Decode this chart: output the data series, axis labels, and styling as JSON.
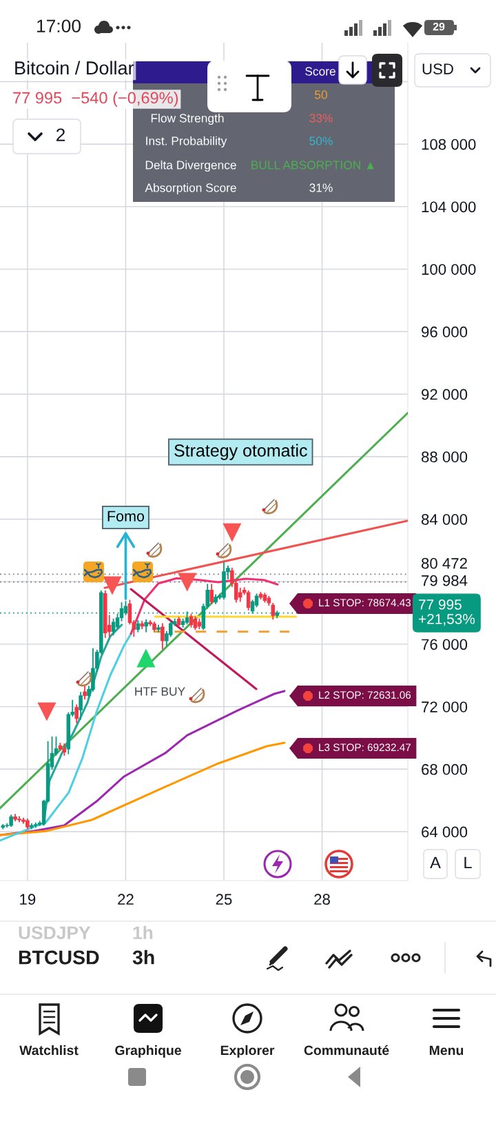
{
  "chart_data": {
    "type": "candlestick",
    "title": "Bitcoin / Dollar",
    "subtitle": "77 995  −540 (−0,69%)",
    "x": [
      18.25,
      18.375,
      18.5,
      18.625,
      18.75,
      18.875,
      19,
      19.125,
      19.25,
      19.375,
      19.5,
      19.625,
      19.75,
      19.875,
      20,
      20.125,
      20.25,
      20.375,
      20.5,
      20.625,
      20.75,
      20.875,
      21,
      21.125,
      21.25,
      21.375,
      21.5,
      21.625,
      21.75,
      21.875,
      22,
      22.125,
      22.25,
      22.375,
      22.5,
      22.625,
      22.75,
      22.875,
      23,
      23.125,
      23.25,
      23.375,
      23.5,
      23.625,
      23.75,
      23.875,
      24,
      24.125,
      24.25,
      24.375,
      24.5,
      24.625,
      24.75,
      24.875,
      25,
      25.125,
      25.25,
      25.375,
      25.5,
      25.625,
      25.75,
      25.875,
      26,
      26.125,
      26.25,
      26.375,
      26.5,
      26.625
    ],
    "ohlc": [
      [
        64280,
        64450,
        64200,
        64380
      ],
      [
        64380,
        64500,
        64300,
        64400
      ],
      [
        64400,
        65050,
        64350,
        64950
      ],
      [
        64950,
        65100,
        64700,
        64800
      ],
      [
        64800,
        64950,
        64650,
        64750
      ],
      [
        64750,
        64850,
        64550,
        64650
      ],
      [
        64700,
        64800,
        64200,
        64300
      ],
      [
        64300,
        64500,
        64200,
        64400
      ],
      [
        64400,
        64550,
        64300,
        64450
      ],
      [
        64450,
        64650,
        64400,
        64550
      ],
      [
        64500,
        66000,
        64450,
        65950
      ],
      [
        65950,
        69750,
        65900,
        68350
      ],
      [
        68150,
        70050,
        68000,
        69000
      ],
      [
        69000,
        70050,
        68900,
        69300
      ],
      [
        69500,
        69650,
        69250,
        69300
      ],
      [
        69300,
        69600,
        68900,
        69100
      ],
      [
        69300,
        71600,
        69000,
        71500
      ],
      [
        71500,
        72400,
        71400,
        71650
      ],
      [
        71950,
        72100,
        71000,
        71250
      ],
      [
        71800,
        72900,
        71200,
        72700
      ],
      [
        72950,
        73300,
        72500,
        72700
      ],
      [
        72700,
        73300,
        72600,
        73100
      ],
      [
        73100,
        75700,
        73000,
        74450
      ],
      [
        74450,
        75600,
        74300,
        75480
      ],
      [
        75480,
        79400,
        75400,
        79300
      ],
      [
        79230,
        79400,
        76440,
        76730
      ],
      [
        77200,
        77830,
        76500,
        76800
      ],
      [
        76800,
        77600,
        76600,
        77400
      ],
      [
        77100,
        77900,
        77000,
        77680
      ],
      [
        77700,
        78640,
        77500,
        78270
      ],
      [
        78000,
        78720,
        77900,
        78420
      ],
      [
        78570,
        78800,
        77300,
        77390
      ],
      [
        77390,
        77500,
        76510,
        76950
      ],
      [
        76950,
        77500,
        76800,
        77300
      ],
      [
        77300,
        77450,
        77000,
        77150
      ],
      [
        77150,
        77550,
        76800,
        77390
      ],
      [
        77390,
        77500,
        77200,
        77300
      ],
      [
        77300,
        77400,
        76850,
        76950
      ],
      [
        76950,
        77200,
        76800,
        77050
      ],
      [
        77100,
        77300,
        75700,
        76220
      ],
      [
        76220,
        76800,
        75920,
        76660
      ],
      [
        76600,
        77450,
        76500,
        77320
      ],
      [
        77300,
        77600,
        77200,
        77450
      ],
      [
        77600,
        77700,
        77150,
        77250
      ],
      [
        77250,
        77600,
        77100,
        77460
      ],
      [
        77400,
        78050,
        77300,
        77680
      ],
      [
        77760,
        77900,
        77100,
        77240
      ],
      [
        77600,
        77750,
        76950,
        77060
      ],
      [
        77400,
        77600,
        77000,
        77150
      ],
      [
        77020,
        78550,
        76950,
        78420
      ],
      [
        78420,
        79820,
        78300,
        79450
      ],
      [
        79450,
        79820,
        78600,
        78720
      ],
      [
        78700,
        79150,
        78600,
        79010
      ],
      [
        79000,
        79200,
        78900,
        79100
      ],
      [
        79000,
        81210,
        78900,
        80630
      ],
      [
        80630,
        80990,
        80190,
        80850
      ],
      [
        80700,
        80850,
        79700,
        79890
      ],
      [
        79890,
        80000,
        78700,
        78860
      ],
      [
        79300,
        79570,
        78750,
        79010
      ],
      [
        79450,
        79600,
        79200,
        79300
      ],
      [
        79300,
        79400,
        78200,
        78350
      ],
      [
        78130,
        78800,
        78000,
        78720
      ],
      [
        78500,
        79200,
        78400,
        79080
      ],
      [
        79200,
        79300,
        78900,
        79000
      ],
      [
        79150,
        79250,
        78700,
        78800
      ],
      [
        78950,
        79050,
        78500,
        78640
      ],
      [
        78500,
        78600,
        77610,
        77840
      ],
      [
        77840,
        78100,
        77700,
        77995
      ]
    ],
    "colors": [
      "#089981",
      "#089981",
      "#089981",
      "#f23645",
      "#f23645",
      "#f23645",
      "#f23645",
      "#089981",
      "#089981",
      "#089981",
      "#089981",
      "#089981",
      "#089981",
      "#089981",
      "#f23645",
      "#f23645",
      "#089981",
      "#089981",
      "#f23645",
      "#089981",
      "#f23645",
      "#089981",
      "#089981",
      "#089981",
      "#089981",
      "#f23645",
      "#f23645",
      "#089981",
      "#089981",
      "#089981",
      "#089981",
      "#f23645",
      "#f23645",
      "#089981",
      "#f23645",
      "#089981",
      "#f23645",
      "#f23645",
      "#089981",
      "#f23645",
      "#089981",
      "#089981",
      "#089981",
      "#f23645",
      "#089981",
      "#089981",
      "#f23645",
      "#f23645",
      "#f23645",
      "#089981",
      "#089981",
      "#f23645",
      "#089981",
      "#089981",
      "#089981",
      "#089981",
      "#f23645",
      "#f23645",
      "#f23645",
      "#f23645",
      "#f23645",
      "#089981",
      "#089981",
      "#f23645",
      "#f23645",
      "#f23645",
      "#f23645",
      "#089981"
    ],
    "series": [
      {
        "type": "line",
        "x": [
          18.16,
          30.62
        ],
        "values": [
          65500,
          90800
        ],
        "color": "#4caf50"
      },
      {
        "type": "line",
        "x": [
          21.36,
          30.62
        ],
        "values": [
          79600,
          83900
        ],
        "color": "#ef5350"
      },
      {
        "type": "line",
        "x": [
          18.16,
          19.21,
          20.12,
          21.11,
          21.95,
          23.21,
          23.88,
          25.42,
          26.54,
          26.85
        ],
        "values": [
          63780,
          64040,
          64400,
          65940,
          67530,
          69030,
          70170,
          71760,
          72820,
          73000
        ],
        "color": "#9c27b0"
      },
      {
        "type": "line",
        "x": [
          18.16,
          19.57,
          20.96,
          23.21,
          24.77,
          26.31,
          26.85
        ],
        "values": [
          63780,
          64040,
          64750,
          66870,
          68320,
          69470,
          69690
        ],
        "color": "#ff9800"
      },
      {
        "type": "line",
        "x": [
          18.16,
          19.57,
          20.26,
          20.68,
          21.11,
          21.53,
          21.95,
          22.16
        ],
        "values": [
          63430,
          64620,
          66510,
          68720,
          71670,
          74010,
          75910,
          76660
        ],
        "color": "#4dd0e1"
      },
      {
        "type": "line",
        "x": [
          19.49,
          19.67,
          20.05,
          20.4,
          20.83,
          21.25,
          21.53,
          21.88
        ],
        "values": [
          64450,
          67250,
          69010,
          70340,
          72250,
          75190,
          76510,
          77240
        ],
        "color": "#26a69a"
      },
      {
        "type": "line",
        "x": [
          22.16,
          22.58,
          23.0,
          23.56,
          24.26,
          24.83,
          25.67,
          26.22,
          26.64
        ],
        "values": [
          76660,
          78860,
          79890,
          80220,
          80110,
          79960,
          80180,
          80110,
          79820
        ],
        "color": "#f0306e"
      },
      {
        "type": "line",
        "x": [
          22.16,
          25.99
        ],
        "values": [
          79520,
          73130
        ],
        "color": "#c2185b"
      },
      {
        "type": "line",
        "x": [
          22.9,
          27.2
        ],
        "values": [
          77760,
          77760
        ],
        "color": "#fdd835"
      },
      {
        "type": "line",
        "x": [
          22.85,
          27.0
        ],
        "values": [
          76800,
          76800
        ],
        "color": "#f0a030",
        "line_style": "dashed"
      },
      {
        "type": "scatter",
        "x": [
          19.59,
          21.59,
          23.88,
          25.25
        ],
        "values": [
          71670,
          79740,
          79960,
          83140
        ],
        "color": "#f75454",
        "marker": "triangle_down"
      },
      {
        "type": "scatter",
        "x": [
          22.62
        ],
        "values": [
          75110
        ],
        "color": "#1fd66c",
        "marker": "triangle"
      }
    ],
    "xlim": [
      18.16,
      30.62
    ],
    "ylim": [
      60870,
      114490
    ],
    "xticks": [
      19,
      22,
      25,
      28
    ],
    "yticks": [
      {
        "value": 64000,
        "label": "64 000"
      },
      {
        "value": 68000,
        "label": "68 000"
      },
      {
        "value": 72000,
        "label": "72 000"
      },
      {
        "value": 76000,
        "label": "76 000"
      },
      {
        "value": 80000,
        "label": null
      },
      {
        "value": 84000,
        "label": "84 000"
      },
      {
        "value": 88000,
        "label": "88 000"
      },
      {
        "value": 92000,
        "label": "92 000"
      },
      {
        "value": 96000,
        "label": "96 000"
      },
      {
        "value": 100000,
        "label": "100 000"
      },
      {
        "value": 104000,
        "label": "104 000"
      },
      {
        "value": 108000,
        "label": "108 000"
      },
      {
        "value": 112000,
        "label": null
      }
    ],
    "grid": true,
    "ref_lines": [
      {
        "axis": "y",
        "value": 80472,
        "label": "80 472",
        "line_style": "dotted"
      },
      {
        "axis": "y",
        "value": 79984,
        "label": "79 984",
        "line_style": "dotted"
      },
      {
        "axis": "y",
        "value": 77995,
        "label": "77 995\n+21,53%",
        "color": "#089981",
        "line_style": "dotted"
      }
    ],
    "annotations": [
      "17:00",
      "29",
      "2",
      "Score",
      "50",
      "Flow Strength",
      "33%",
      "Inst. Probability",
      "50%",
      "Delta Divergence",
      "BULL ABSORPTION ▲",
      "Absorption Score",
      "31%",
      "USD",
      "Strategy otomatic",
      "A",
      "L",
      "USDJPY",
      "1h",
      "BTCUSD",
      "3h",
      "Watchlist",
      "Graphique",
      "Explorer",
      "Communauté",
      "Menu",
      {
        "text": "Fomo",
        "x": 22.0,
        "y": 78720
      },
      "HTF BUY",
      "L1 STOP: 78674.43",
      "L2 STOP: 72631.06",
      "L3 STOP: 69232.47"
    ]
  }
}
